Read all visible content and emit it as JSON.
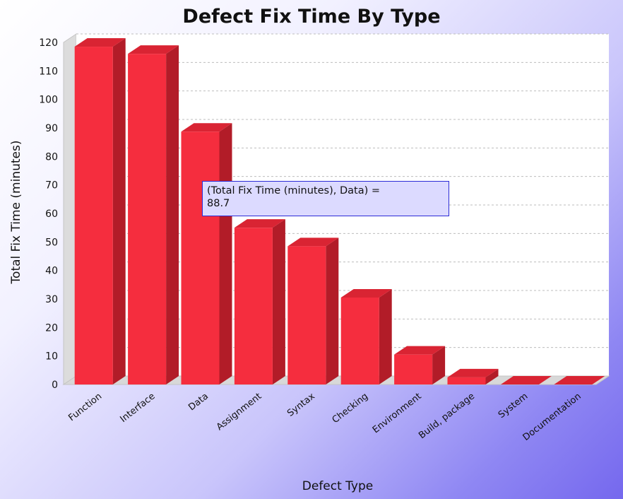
{
  "chart_data": {
    "type": "bar",
    "title": "Defect Fix Time By Type",
    "xlabel": "Defect Type",
    "ylabel": "Total Fix Time (minutes)",
    "categories": [
      "Function",
      "Interface",
      "Data",
      "Assignment",
      "Syntax",
      "Checking",
      "Environment",
      "Build, package",
      "System",
      "Documentation"
    ],
    "series": [
      {
        "name": "Total Fix Time (minutes)",
        "values": [
          118.5,
          116,
          88.7,
          55,
          48.5,
          30.5,
          10.5,
          2.5,
          0,
          0
        ]
      }
    ],
    "ylim": [
      0,
      120
    ],
    "yticks": [
      0,
      10,
      20,
      30,
      40,
      50,
      60,
      70,
      80,
      90,
      100,
      110,
      120
    ],
    "grid": true,
    "legend": "none",
    "style": "3d",
    "colors": {
      "bar": "#f52d3e",
      "bar_top": "#d92433",
      "bar_side": "#b21c28"
    },
    "tooltip": {
      "line1": "(Total Fix Time (minutes), Data) =",
      "line2": "88.7"
    }
  }
}
